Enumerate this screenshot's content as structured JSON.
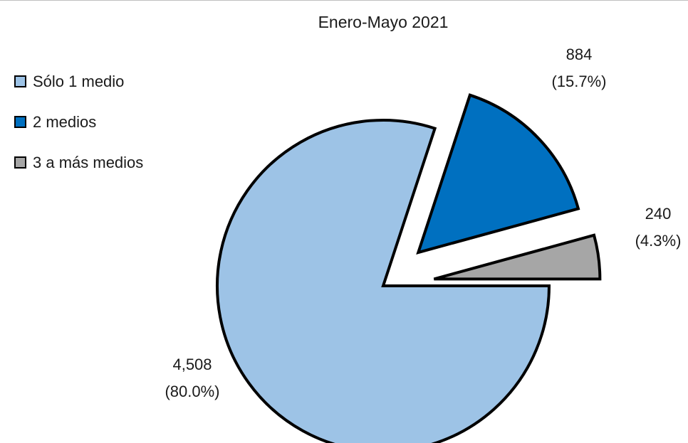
{
  "chart_data": {
    "type": "pie",
    "title": "Enero-Mayo 2021",
    "legend_position": "left",
    "slices": [
      {
        "name": "Sólo 1 medio",
        "value": 4508,
        "percent_label": "(80.0%)",
        "value_label": "4,508",
        "color": "#9dc3e6"
      },
      {
        "name": "2 medios",
        "value": 884,
        "percent_label": "(15.7%)",
        "value_label": "884",
        "color": "#0070c0"
      },
      {
        "name": "3 a más medios",
        "value": 240,
        "percent_label": "(4.3%)",
        "value_label": "240",
        "color": "#a6a6a6"
      }
    ]
  }
}
